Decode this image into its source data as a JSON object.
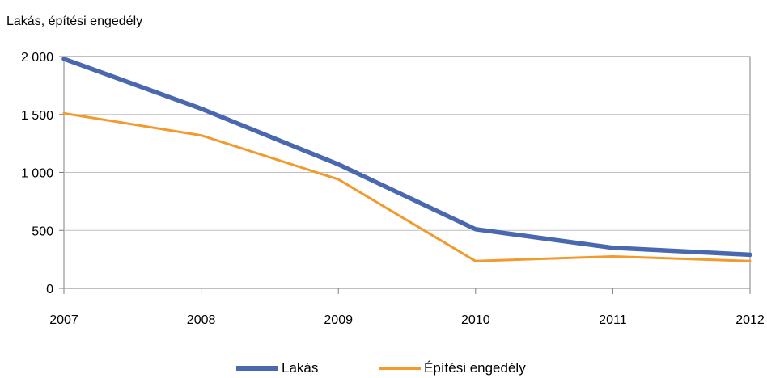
{
  "chart_data": {
    "type": "line",
    "ylabel": "Lakás, építési engedély",
    "x": [
      "2007",
      "2008",
      "2009",
      "2010",
      "2011",
      "2012"
    ],
    "ylim": [
      0,
      2000
    ],
    "yticks": [
      0,
      500,
      1000,
      1500,
      2000
    ],
    "ytick_labels": [
      "0",
      "500",
      "1 000",
      "1 500",
      "2 000"
    ],
    "grid": true,
    "legend_position": "bottom",
    "series": [
      {
        "name": "Lakás",
        "values": [
          1980,
          1550,
          1070,
          510,
          350,
          290
        ],
        "color": "#4a68b0"
      },
      {
        "name": "Építési engedély",
        "values": [
          1510,
          1320,
          940,
          235,
          275,
          235
        ],
        "color": "#f29a2e"
      }
    ]
  }
}
